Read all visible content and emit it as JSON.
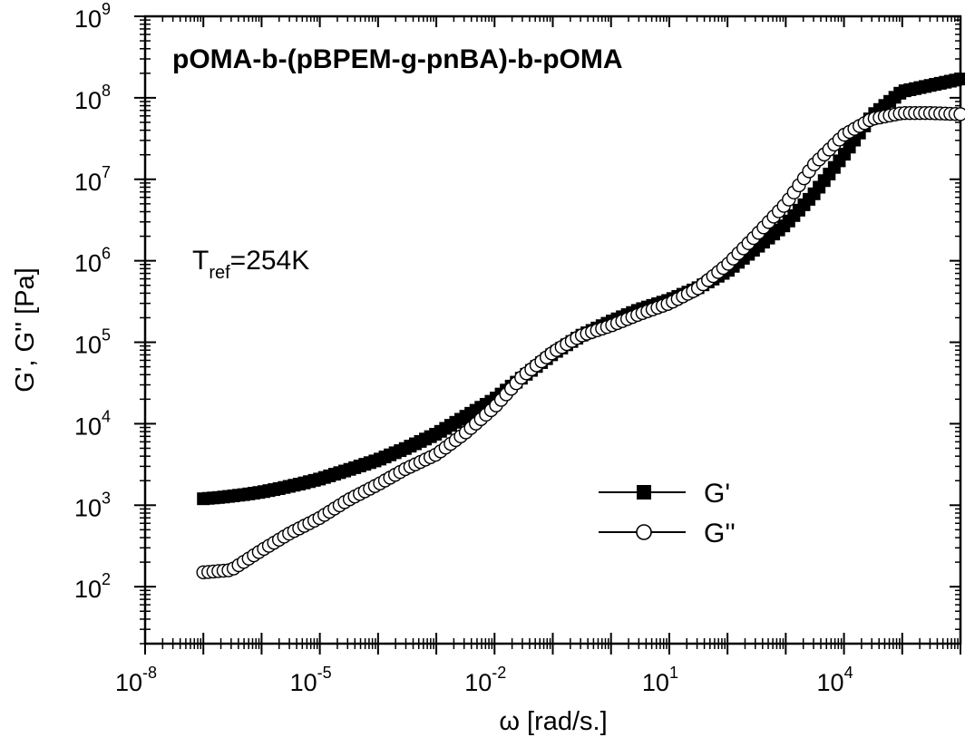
{
  "chart_data": {
    "type": "scatter",
    "title": "pOMA-b-(pBPEM-g-pnBA)-b-pOMA",
    "annotation": {
      "base": "T",
      "subscript": "ref",
      "value": "=254K"
    },
    "xlabel": "ω [rad/s.]",
    "ylabel": "G', G'' [Pa]",
    "x_scale": "log",
    "y_scale": "log",
    "xlim": [
      1e-08,
      1000000
    ],
    "ylim": [
      20,
      1000000000
    ],
    "x_tick_labels": [
      {
        "base": "10",
        "exp": "-8"
      },
      {
        "base": "10",
        "exp": "-5"
      },
      {
        "base": "10",
        "exp": "-2"
      },
      {
        "base": "10",
        "exp": "1"
      },
      {
        "base": "10",
        "exp": "4"
      }
    ],
    "x_tick_values": [
      1e-08,
      1e-05,
      0.01,
      10,
      10000
    ],
    "y_tick_labels": [
      {
        "base": "10",
        "exp": "2"
      },
      {
        "base": "10",
        "exp": "3"
      },
      {
        "base": "10",
        "exp": "4"
      },
      {
        "base": "10",
        "exp": "5"
      },
      {
        "base": "10",
        "exp": "6"
      },
      {
        "base": "10",
        "exp": "7"
      },
      {
        "base": "10",
        "exp": "8"
      },
      {
        "base": "10",
        "exp": "9"
      }
    ],
    "y_tick_values": [
      100,
      1000,
      10000,
      100000,
      1000000,
      10000000,
      100000000,
      1000000000
    ],
    "legend": {
      "position": "lower-right",
      "entries": [
        "G'",
        "G''"
      ]
    },
    "series": [
      {
        "name": "G'",
        "marker": "filled-square",
        "color": "#000000",
        "points": [
          [
            1e-07,
            1200
          ],
          [
            2e-07,
            1250
          ],
          [
            5e-07,
            1350
          ],
          [
            1e-06,
            1450
          ],
          [
            2e-06,
            1600
          ],
          [
            5e-06,
            1850
          ],
          [
            1e-05,
            2100
          ],
          [
            3e-05,
            2700
          ],
          [
            0.0001,
            3600
          ],
          [
            0.0003,
            5000
          ],
          [
            0.001,
            7500
          ],
          [
            0.003,
            12000
          ],
          [
            0.01,
            20000
          ],
          [
            0.03,
            37000
          ],
          [
            0.1,
            72000
          ],
          [
            0.3,
            120000
          ],
          [
            1,
            180000
          ],
          [
            3,
            250000
          ],
          [
            10,
            330000
          ],
          [
            30,
            460000
          ],
          [
            100,
            750000
          ],
          [
            300,
            1400000
          ],
          [
            1000,
            2800000
          ],
          [
            3000,
            6500000
          ],
          [
            10000,
            20000000
          ],
          [
            30000,
            60000000
          ],
          [
            100000,
            120000000
          ],
          [
            1000000,
            170000000
          ]
        ]
      },
      {
        "name": "G''",
        "marker": "open-circle",
        "color": "#000000",
        "points": [
          [
            1e-07,
            150
          ],
          [
            3e-07,
            160
          ],
          [
            1e-06,
            280
          ],
          [
            3e-06,
            450
          ],
          [
            1e-05,
            700
          ],
          [
            3e-05,
            1150
          ],
          [
            0.0001,
            1800
          ],
          [
            0.0003,
            2800
          ],
          [
            0.001,
            4200
          ],
          [
            0.003,
            7500
          ],
          [
            0.01,
            16000
          ],
          [
            0.03,
            38000
          ],
          [
            0.1,
            75000
          ],
          [
            0.3,
            120000
          ],
          [
            1,
            160000
          ],
          [
            3,
            220000
          ],
          [
            10,
            300000
          ],
          [
            30,
            450000
          ],
          [
            100,
            900000
          ],
          [
            300,
            2000000
          ],
          [
            1000,
            5000000
          ],
          [
            3000,
            15000000
          ],
          [
            10000,
            35000000
          ],
          [
            30000,
            55000000
          ],
          [
            100000,
            65000000
          ],
          [
            300000,
            65000000
          ],
          [
            1000000,
            63000000
          ]
        ]
      }
    ]
  }
}
